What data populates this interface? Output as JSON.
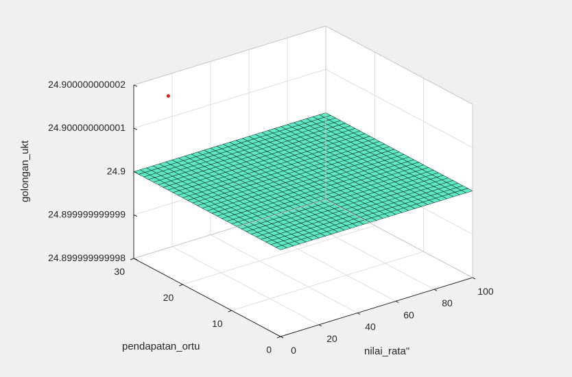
{
  "chart_data": {
    "type": "surface",
    "xlabel": "nilai_rata\"",
    "ylabel": "pendapatan_ortu",
    "zlabel": "golongan_ukt",
    "xlim": [
      0,
      100
    ],
    "ylim": [
      0,
      30
    ],
    "zlim": [
      24.899999999998,
      24.900000000002
    ],
    "x_ticks": [
      0,
      20,
      40,
      60,
      80,
      100
    ],
    "x_tick_labels": [
      "0",
      "20",
      "40",
      "60",
      "80",
      "100"
    ],
    "y_ticks": [
      0,
      10,
      20,
      30
    ],
    "y_tick_labels": [
      "0",
      "10",
      "20",
      "30"
    ],
    "z_ticks": [
      24.899999999998,
      24.899999999999,
      24.9,
      24.900000000001,
      24.900000000002
    ],
    "z_tick_labels": [
      "24.899999999998",
      "24.899999999999",
      "24.9",
      "24.900000000001",
      "24.900000000002"
    ],
    "grid": true,
    "surface": {
      "z_value": 24.9,
      "x_range": [
        0,
        100
      ],
      "y_range": [
        0,
        30
      ],
      "color": "#5ee8c3",
      "edge_color": "#000000"
    },
    "points": [
      {
        "x": 18,
        "y": 30,
        "z": 24.9000000000015,
        "color": "#e0201b"
      }
    ]
  }
}
